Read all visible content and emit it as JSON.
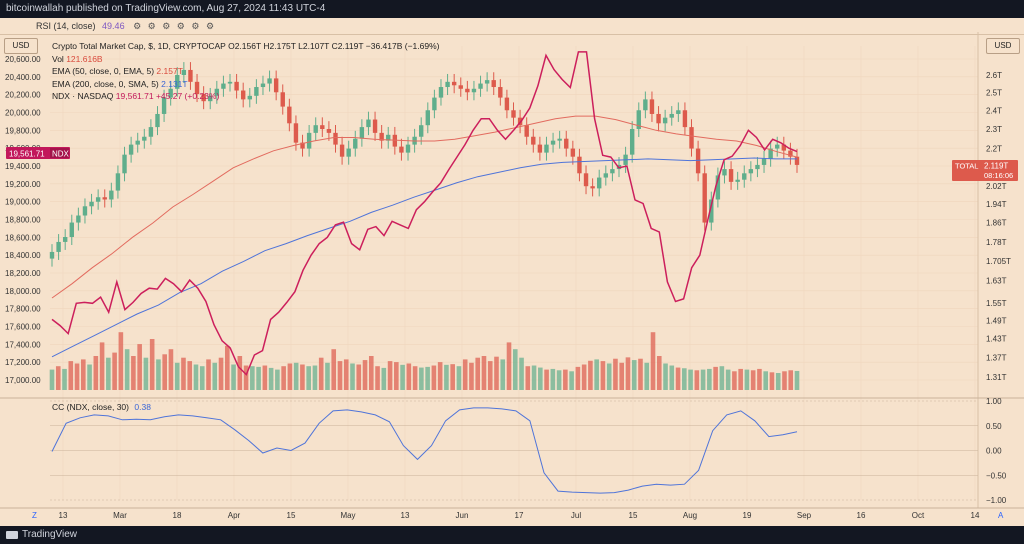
{
  "header": {
    "published_text": "bitcoinwallah published on TradingView.com, Aug 27, 2024 11:43 UTC-4"
  },
  "rsi_strip": {
    "label": "RSI (14, close)",
    "value": "49.46",
    "icons": "⚙ ⚙ ⚙ ⚙ ⚙ ⚙"
  },
  "units": {
    "left": "USD",
    "right": "USD"
  },
  "legend": {
    "title": "Crypto Total Market Cap, $, 1D, CRYPTOCAP",
    "ohlc": "O2.156T H2.175T L2.107T C2.119T −36.417B (−1.69%)",
    "vol_label": "Vol",
    "vol_value": "121.616B",
    "ema50_label": "EMA (50, close, 0, EMA, 5)",
    "ema50_value": "2.157T",
    "ema200_label": "EMA (200, close, 0, SMA, 5)",
    "ema200_value": "2.131T",
    "ndx_label": "NDX · NASDAQ",
    "ndx_value": "19,561.71 +45.27 (+0.23%)"
  },
  "badges": {
    "ndx_left_value": "19,561.71",
    "ndx_left_tag": "NDX",
    "total_tag": "TOTAL",
    "total_value": "2.119T",
    "total_countdown": "08:16:06"
  },
  "cc": {
    "label": "CC (NDX, close, 30)",
    "value": "0.38"
  },
  "footer": {
    "brand": "TradingView",
    "z_label": "Z",
    "a_label": "A"
  },
  "colors": {
    "background": "#f6e2cc",
    "candle_up": "#5fae8c",
    "candle_down": "#dd5a4c",
    "ema50": "#e26b5f",
    "ema200": "#4f74d9",
    "ndx": "#cc1f5c",
    "cc": "#4f74d9"
  },
  "chart_data": [
    {
      "type": "line",
      "title": "Crypto Total Market Cap, $, 1D, CRYPTOCAP",
      "x_ticks": [
        "13",
        "Mar",
        "18",
        "Apr",
        "15",
        "May",
        "13",
        "Jun",
        "17",
        "Jul",
        "15",
        "Aug",
        "19",
        "Sep",
        "16",
        "Oct",
        "14"
      ],
      "left_axis_ticks": [
        "20,600.00",
        "20,400.00",
        "20,200.00",
        "20,000.00",
        "19,800.00",
        "19,600.00",
        "19,400.00",
        "19,200.00",
        "19,000.00",
        "18,800.00",
        "18,600.00",
        "18,400.00",
        "18,200.00",
        "18,000.00",
        "17,800.00",
        "17,600.00",
        "17,400.00",
        "17,200.00",
        "17,000.00"
      ],
      "right_axis_ticks": [
        "2.6T",
        "2.5T",
        "2.4T",
        "2.3T",
        "2.2T",
        "2.1T",
        "2.02T",
        "1.94T",
        "1.86T",
        "1.78T",
        "1.705T",
        "1.63T",
        "1.55T",
        "1.49T",
        "1.43T",
        "1.37T",
        "1.31T"
      ],
      "right_axis_scale": "log",
      "total_close_series": [
        1.74,
        1.78,
        1.8,
        1.86,
        1.89,
        1.93,
        1.95,
        1.97,
        1.96,
        2.0,
        2.08,
        2.17,
        2.22,
        2.24,
        2.26,
        2.31,
        2.38,
        2.47,
        2.52,
        2.6,
        2.63,
        2.56,
        2.49,
        2.45,
        2.48,
        2.52,
        2.55,
        2.56,
        2.51,
        2.46,
        2.48,
        2.53,
        2.55,
        2.58,
        2.5,
        2.42,
        2.33,
        2.23,
        2.2,
        2.28,
        2.32,
        2.3,
        2.28,
        2.22,
        2.16,
        2.2,
        2.25,
        2.31,
        2.35,
        2.28,
        2.24,
        2.27,
        2.21,
        2.18,
        2.22,
        2.26,
        2.32,
        2.4,
        2.47,
        2.53,
        2.56,
        2.54,
        2.52,
        2.5,
        2.52,
        2.55,
        2.57,
        2.53,
        2.47,
        2.4,
        2.36,
        2.32,
        2.26,
        2.22,
        2.18,
        2.22,
        2.24,
        2.25,
        2.2,
        2.16,
        2.08,
        2.02,
        2.01,
        2.06,
        2.08,
        2.1,
        2.12,
        2.17,
        2.3,
        2.4,
        2.46,
        2.38,
        2.33,
        2.36,
        2.38,
        2.4,
        2.31,
        2.2,
        2.08,
        1.86,
        1.96,
        2.07,
        2.1,
        2.04,
        2.05,
        2.08,
        2.1,
        2.12,
        2.15,
        2.2,
        2.22,
        2.19,
        2.16,
        2.12
      ],
      "ndx_series": [
        17680,
        17610,
        17520,
        17860,
        17870,
        17860,
        17930,
        17760,
        18100,
        17790,
        17870,
        17970,
        18030,
        18020,
        18140,
        18080,
        17990,
        18120,
        18030,
        17880,
        17620,
        17440,
        17360,
        17150,
        17060,
        17280,
        17330,
        17680,
        17760,
        17870,
        17990,
        18230,
        18400,
        18530,
        18600,
        18740,
        18770,
        18530,
        18460,
        18690,
        18720,
        18620,
        18780,
        18740,
        18700,
        18910,
        19000,
        19110,
        19210,
        19360,
        19500,
        19640,
        19800,
        19930,
        19930,
        19800,
        19700,
        19800,
        19910,
        20050,
        20300,
        20640,
        20480,
        20370,
        20280,
        20680,
        20680,
        19930,
        19520,
        19500,
        19380,
        19400,
        19020,
        18980,
        18700,
        18660,
        18100,
        17880,
        17910,
        18260,
        18400,
        18800,
        19180,
        19470,
        19510,
        19630,
        19800,
        19720,
        19580,
        19700,
        19660,
        19600,
        19561.71
      ],
      "ema50_series": [
        17920,
        18080,
        18260,
        18420,
        18600,
        18760,
        18940,
        19080,
        19230,
        19380,
        19480,
        19570,
        19630,
        19680,
        19720,
        19720,
        19700,
        19690,
        19680,
        19680,
        19700,
        19740,
        19780,
        19830,
        19880,
        19930,
        19960,
        19960,
        19920,
        19860,
        19800,
        19760,
        19730,
        19700,
        19680,
        19630,
        19560,
        19500
      ],
      "ema200_series": [
        17260,
        17380,
        17500,
        17620,
        17740,
        17840,
        17980,
        18080,
        18220,
        18330,
        18450,
        18530,
        18620,
        18700,
        18780,
        18880,
        18960,
        19050,
        19130,
        19210,
        19280,
        19330,
        19380,
        19420,
        19440,
        19450,
        19460,
        19470,
        19480,
        19470,
        19460,
        19470,
        19480,
        19490,
        19480,
        19480
      ],
      "volume_series_billions": [
        60,
        70,
        62,
        85,
        78,
        90,
        75,
        100,
        140,
        95,
        110,
        170,
        120,
        100,
        135,
        95,
        150,
        90,
        105,
        120,
        80,
        95,
        85,
        75,
        70,
        90,
        80,
        95,
        130,
        75,
        100,
        72,
        70,
        68,
        72,
        65,
        60,
        70,
        78,
        80,
        75,
        70,
        72,
        95,
        80,
        120,
        85,
        90,
        78,
        75,
        88,
        100,
        70,
        65,
        85,
        82,
        74,
        78,
        70,
        66,
        68,
        72,
        82,
        74,
        76,
        70,
        90,
        80,
        95,
        100,
        85,
        98,
        90,
        140,
        120,
        95,
        70,
        72,
        66,
        60,
        62,
        58,
        60,
        55,
        68,
        75,
        86,
        90,
        85,
        78,
        92,
        80,
        96,
        88,
        92,
        80,
        170,
        100,
        78,
        72,
        66,
        64,
        60,
        58,
        60,
        62,
        68,
        70,
        60,
        55,
        62,
        60,
        58,
        62,
        55,
        52,
        50,
        55,
        58,
        56
      ]
    },
    {
      "type": "line",
      "title": "CC (NDX, close, 30)",
      "y_ticks": [
        "1.00",
        "0.50",
        "0.00",
        "−0.50",
        "−1.00"
      ],
      "ylim": [
        -1.0,
        1.0
      ],
      "values": [
        -0.02,
        0.55,
        0.66,
        0.72,
        0.7,
        0.62,
        0.63,
        0.62,
        0.68,
        0.72,
        0.7,
        0.66,
        0.62,
        0.42,
        0.2,
        -0.05,
        0.05,
        0.0,
        0.15,
        0.55,
        0.8,
        0.82,
        0.78,
        0.72,
        0.58,
        0.1,
        -0.18,
        0.1,
        0.6,
        0.82,
        0.86,
        0.86,
        0.84,
        0.8,
        0.6,
        -0.45,
        -0.82,
        -0.84,
        -0.85,
        -0.86,
        -0.85,
        -0.8,
        -0.72,
        -0.68,
        -0.7,
        -0.68,
        -0.4,
        0.4,
        0.72,
        0.8,
        0.6,
        0.28,
        0.32,
        0.38
      ]
    }
  ]
}
